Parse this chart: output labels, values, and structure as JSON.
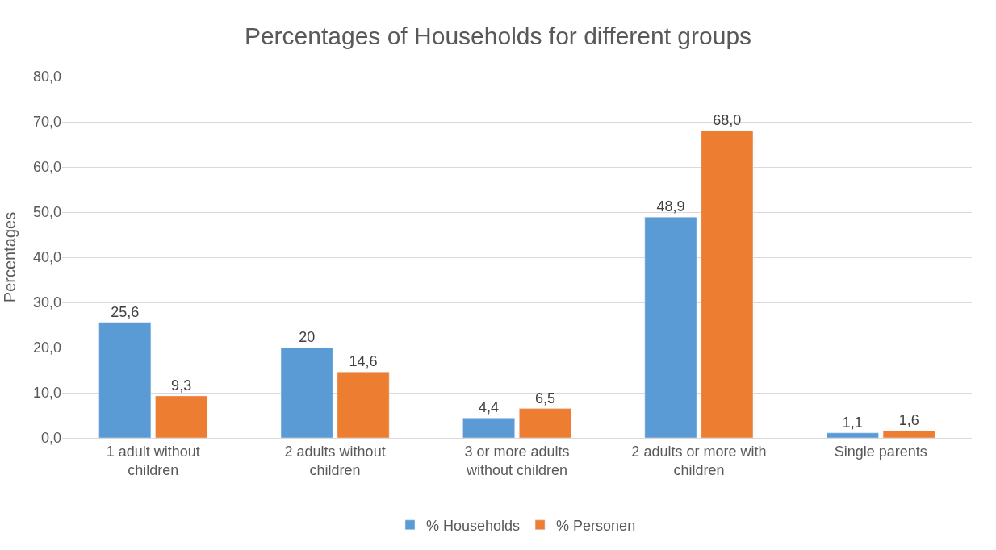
{
  "chart_data": {
    "type": "bar",
    "title": "Percentages of Households for different groups",
    "ylabel": "Percentages",
    "categories": [
      "1 adult without children",
      "2 adults without children",
      "3 or more adults without children",
      "2 adults or more with children",
      "Single parents"
    ],
    "series": [
      {
        "name": "% Households",
        "color": "#5b9bd5",
        "values": [
          25.6,
          20,
          4.4,
          48.9,
          1.1
        ],
        "value_labels": [
          "25,6",
          "20",
          "4,4",
          "48,9",
          "1,1"
        ]
      },
      {
        "name": "% Personen",
        "color": "#ed7d31",
        "values": [
          9.3,
          14.6,
          6.5,
          68.0,
          1.6
        ],
        "value_labels": [
          "9,3",
          "14,6",
          "6,5",
          "68,0",
          "1,6"
        ]
      }
    ],
    "ylim": [
      0,
      80
    ],
    "yticks": [
      {
        "value": 0,
        "label": "0,0"
      },
      {
        "value": 10,
        "label": "10,0"
      },
      {
        "value": 20,
        "label": "20,0"
      },
      {
        "value": 30,
        "label": "30,0"
      },
      {
        "value": 40,
        "label": "40,0"
      },
      {
        "value": 50,
        "label": "50,0"
      },
      {
        "value": 60,
        "label": "60,0"
      },
      {
        "value": 70,
        "label": "70,0"
      },
      {
        "value": 80,
        "label": "80,0"
      }
    ],
    "grid": "y",
    "legend": "bottom"
  }
}
